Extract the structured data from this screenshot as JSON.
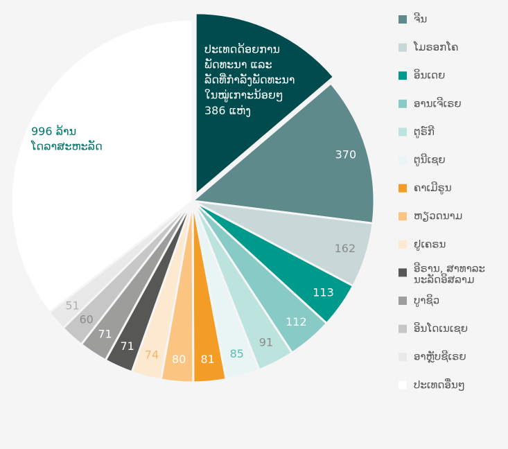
{
  "chart_data": {
    "type": "pie",
    "categories": [
      null,
      "ຈີນ",
      "ໂມຣອກໂຄ",
      "ອິນເດຍ",
      "ອານເຈີເຣຍ",
      "ຕູຣ໌ກີ",
      "ຕູນີເຊຍ",
      "ຄາເມີຣູນ",
      "ຫຽວດນາມ",
      "ຢູເຄຣນ",
      "ອີຣານ, ສາທາລະ ນະລັດອິສລາມ",
      "ບູາຊິວ",
      "ອິນໂດເນເຊຍ",
      "ອາຫຼັບຊີເຣຍ",
      "ປະເທດອື່ນໆ"
    ],
    "values": [
      386,
      370,
      162,
      113,
      112,
      91,
      85,
      81,
      80,
      74,
      71,
      71,
      60,
      51,
      996
    ],
    "colors": [
      "#004b4d",
      "#5e8a8c",
      "#c8d7d8",
      "#009a8d",
      "#88cbc6",
      "#bde3df",
      "#e8f5f4",
      "#f39c26",
      "#fbc480",
      "#fde8d0",
      "#575756",
      "#9d9d9c",
      "#c6c6c6",
      "#e9e9e9",
      "#ffffff"
    ],
    "label_colors": [
      "#ffffff",
      "#ffffff",
      "#8a8a8a",
      "#ffffff",
      "#ffffff",
      "#8a8a8a",
      "#5bbab3",
      "#ffffff",
      "#ffffff",
      "#f3b76b",
      "#ffffff",
      "#ffffff",
      "#8a8a8a",
      "#b0b0b0",
      "#00756c"
    ],
    "annotations": [
      {
        "index": 0,
        "lines": [
          "ປະເທດດ້ອຍການ",
          "ພັດທະນາ ແລະ",
          "ລັດທີ່ກຳລັງພັດທະນາ",
          "ໃນໝູ່ເກາະນ້ອຍໆ"
        ],
        "unit": "ແຫ່ງ"
      },
      {
        "index": 14,
        "lines": [],
        "unit": "ລ້ານ",
        "after": "ໂດລາສະຫະລັດ"
      }
    ]
  }
}
